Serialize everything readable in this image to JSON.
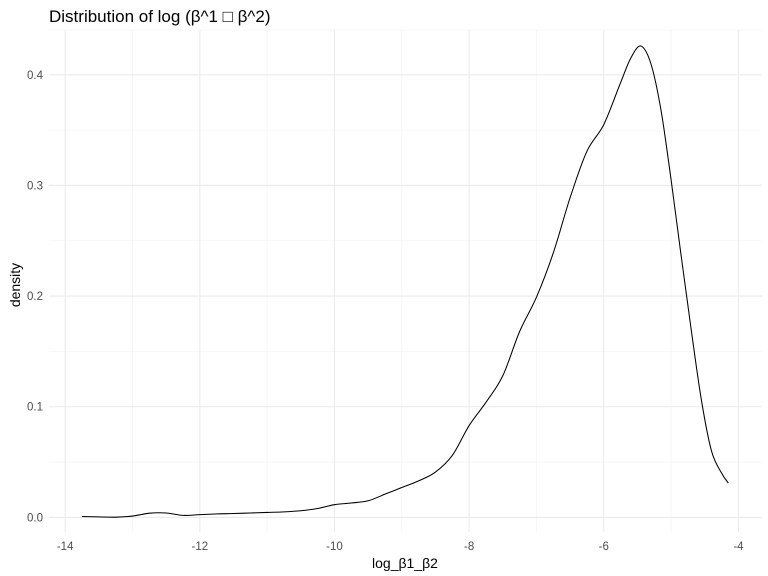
{
  "chart_data": {
    "type": "line",
    "title": "Distribution of log (β^1 □ β^2)",
    "xlabel": "log_β1_β2",
    "ylabel": "density",
    "xlim": [
      -14.24,
      -3.65
    ],
    "ylim": [
      -0.0132,
      0.4405
    ],
    "x_ticks": [
      -14,
      -12,
      -10,
      -8,
      -6,
      -4
    ],
    "x_tick_labels": [
      "-14",
      "-12",
      "-10",
      "-8",
      "-6",
      "-4"
    ],
    "y_ticks": [
      0.0,
      0.1,
      0.2,
      0.3,
      0.4
    ],
    "y_tick_labels": [
      "0.0",
      "0.1",
      "0.2",
      "0.3",
      "0.4"
    ],
    "grid": true,
    "legend": "none",
    "line_color": "#000000",
    "series": [
      {
        "x": [
          -13.75,
          -13.5,
          -13.25,
          -13.0,
          -12.75,
          -12.5,
          -12.25,
          -12.0,
          -11.75,
          -11.5,
          -11.25,
          -11.0,
          -10.75,
          -10.5,
          -10.25,
          -10.0,
          -9.75,
          -9.5,
          -9.25,
          -9.0,
          -8.75,
          -8.5,
          -8.25,
          -8.0,
          -7.75,
          -7.5,
          -7.25,
          -7.0,
          -6.75,
          -6.5,
          -6.25,
          -6.0,
          -5.75,
          -5.6,
          -5.45,
          -5.3,
          -5.15,
          -5.0,
          -4.85,
          -4.7,
          -4.55,
          -4.4,
          -4.25,
          -4.15
        ],
        "y": [
          0.0008,
          0.0005,
          0.0002,
          0.0012,
          0.0038,
          0.004,
          0.0018,
          0.0025,
          0.0032,
          0.0035,
          0.004,
          0.0045,
          0.005,
          0.006,
          0.008,
          0.0115,
          0.013,
          0.015,
          0.021,
          0.027,
          0.033,
          0.041,
          0.056,
          0.083,
          0.104,
          0.128,
          0.168,
          0.199,
          0.239,
          0.289,
          0.331,
          0.355,
          0.393,
          0.415,
          0.426,
          0.41,
          0.368,
          0.305,
          0.236,
          0.169,
          0.106,
          0.06,
          0.04,
          0.031
        ]
      }
    ]
  }
}
